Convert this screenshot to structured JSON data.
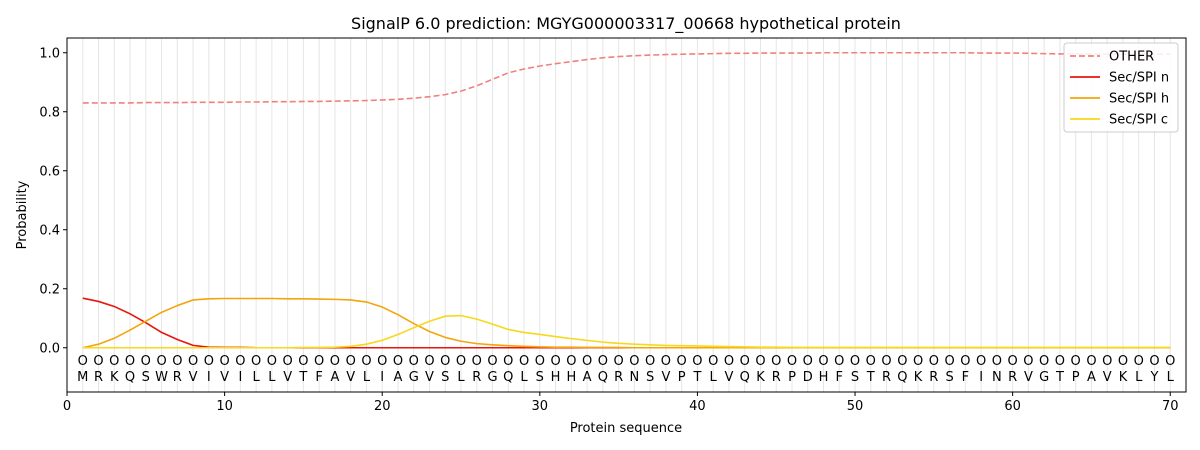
{
  "chart_data": {
    "type": "line",
    "title": "SignalP 6.0 prediction: MGYG000003317_00668 hypothetical protein",
    "xlabel": "Protein sequence",
    "ylabel": "Probability",
    "xlim": [
      0,
      71
    ],
    "ylim": [
      -0.15,
      1.05
    ],
    "xticks": [
      0,
      10,
      20,
      30,
      40,
      50,
      60,
      70
    ],
    "yticks": [
      0.0,
      0.2,
      0.4,
      0.6,
      0.8,
      1.0
    ],
    "ytick_labels": [
      "0.0",
      "0.2",
      "0.4",
      "0.6",
      "0.8",
      "1.0"
    ],
    "grid": "vertical lines at each residue",
    "legend_position": "top-right",
    "sequence": [
      "M",
      "R",
      "K",
      "Q",
      "S",
      "W",
      "R",
      "V",
      "I",
      "V",
      "I",
      "L",
      "L",
      "V",
      "T",
      "F",
      "A",
      "V",
      "L",
      "I",
      "A",
      "G",
      "V",
      "S",
      "L",
      "R",
      "G",
      "Q",
      "L",
      "S",
      "H",
      "H",
      "A",
      "Q",
      "R",
      "N",
      "S",
      "V",
      "P",
      "T",
      "L",
      "V",
      "Q",
      "K",
      "R",
      "P",
      "D",
      "H",
      "F",
      "S",
      "T",
      "R",
      "Q",
      "K",
      "R",
      "S",
      "F",
      "I",
      "N",
      "R",
      "V",
      "G",
      "T",
      "P",
      "A",
      "V",
      "K",
      "L",
      "Y",
      "L"
    ],
    "region_marker": "O",
    "series": [
      {
        "name": "OTHER",
        "color": "#f08080",
        "dash": true,
        "values": [
          0.83,
          0.83,
          0.83,
          0.83,
          0.831,
          0.831,
          0.831,
          0.832,
          0.832,
          0.832,
          0.833,
          0.833,
          0.834,
          0.834,
          0.835,
          0.835,
          0.836,
          0.837,
          0.838,
          0.84,
          0.842,
          0.846,
          0.851,
          0.858,
          0.87,
          0.888,
          0.91,
          0.932,
          0.945,
          0.955,
          0.963,
          0.97,
          0.977,
          0.983,
          0.987,
          0.99,
          0.992,
          0.994,
          0.995,
          0.996,
          0.997,
          0.998,
          0.998,
          0.999,
          0.999,
          0.999,
          0.999,
          1.0,
          1.0,
          1.0,
          1.0,
          1.0,
          1.0,
          1.0,
          1.0,
          1.0,
          1.0,
          0.999,
          0.999,
          0.999,
          0.998,
          0.997,
          0.996,
          0.996,
          0.995,
          0.995,
          0.995,
          0.995,
          0.995,
          0.995
        ]
      },
      {
        "name": "Sec/SPI n",
        "color": "#e8140e",
        "dash": false,
        "values": [
          0.168,
          0.157,
          0.14,
          0.115,
          0.085,
          0.052,
          0.028,
          0.008,
          0.002,
          0.001,
          0.001,
          0.0,
          0.0,
          0.0,
          0.0,
          0.0,
          0.0,
          0.0,
          0.0,
          0.0,
          0.0,
          0.0,
          0.0,
          0.0,
          0.0,
          0.0,
          0.0,
          0.0,
          0.0,
          0.0,
          0.0,
          0.0,
          0.0,
          0.0,
          0.0,
          0.0,
          0.0,
          0.0,
          0.0,
          0.0,
          0.0,
          0.0,
          0.0,
          0.0,
          0.0,
          0.0,
          0.0,
          0.0,
          0.0,
          0.0,
          0.0,
          0.0,
          0.0,
          0.0,
          0.0,
          0.0,
          0.0,
          0.0,
          0.0,
          0.0,
          0.0,
          0.0,
          0.0,
          0.0,
          0.0,
          0.0,
          0.0,
          0.0,
          0.0,
          0.0
        ]
      },
      {
        "name": "Sec/SPI h",
        "color": "#f5a40a",
        "dash": false,
        "values": [
          0.0,
          0.012,
          0.032,
          0.06,
          0.09,
          0.12,
          0.143,
          0.162,
          0.166,
          0.167,
          0.167,
          0.167,
          0.167,
          0.166,
          0.166,
          0.165,
          0.164,
          0.162,
          0.155,
          0.138,
          0.112,
          0.082,
          0.055,
          0.035,
          0.022,
          0.014,
          0.01,
          0.007,
          0.005,
          0.003,
          0.002,
          0.002,
          0.001,
          0.001,
          0.001,
          0.0,
          0.0,
          0.0,
          0.0,
          0.0,
          0.0,
          0.0,
          0.0,
          0.0,
          0.0,
          0.0,
          0.0,
          0.0,
          0.0,
          0.0,
          0.0,
          0.0,
          0.0,
          0.0,
          0.0,
          0.0,
          0.0,
          0.0,
          0.0,
          0.0,
          0.0,
          0.0,
          0.0,
          0.0,
          0.0,
          0.0,
          0.0,
          0.0,
          0.0,
          0.0
        ]
      },
      {
        "name": "Sec/SPI c",
        "color": "#f7d81c",
        "dash": false,
        "values": [
          0.0,
          0.0,
          0.0,
          0.0,
          0.0,
          0.0,
          0.0,
          0.0,
          0.0,
          0.0,
          0.0,
          0.0,
          0.0,
          0.0,
          0.001,
          0.001,
          0.002,
          0.005,
          0.012,
          0.025,
          0.045,
          0.068,
          0.09,
          0.107,
          0.109,
          0.097,
          0.08,
          0.062,
          0.052,
          0.045,
          0.038,
          0.031,
          0.025,
          0.019,
          0.015,
          0.012,
          0.01,
          0.008,
          0.007,
          0.006,
          0.005,
          0.004,
          0.003,
          0.002,
          0.002,
          0.001,
          0.001,
          0.001,
          0.001,
          0.001,
          0.001,
          0.001,
          0.001,
          0.001,
          0.001,
          0.001,
          0.001,
          0.001,
          0.001,
          0.001,
          0.001,
          0.001,
          0.001,
          0.001,
          0.001,
          0.001,
          0.001,
          0.001,
          0.001,
          0.001
        ]
      }
    ]
  }
}
